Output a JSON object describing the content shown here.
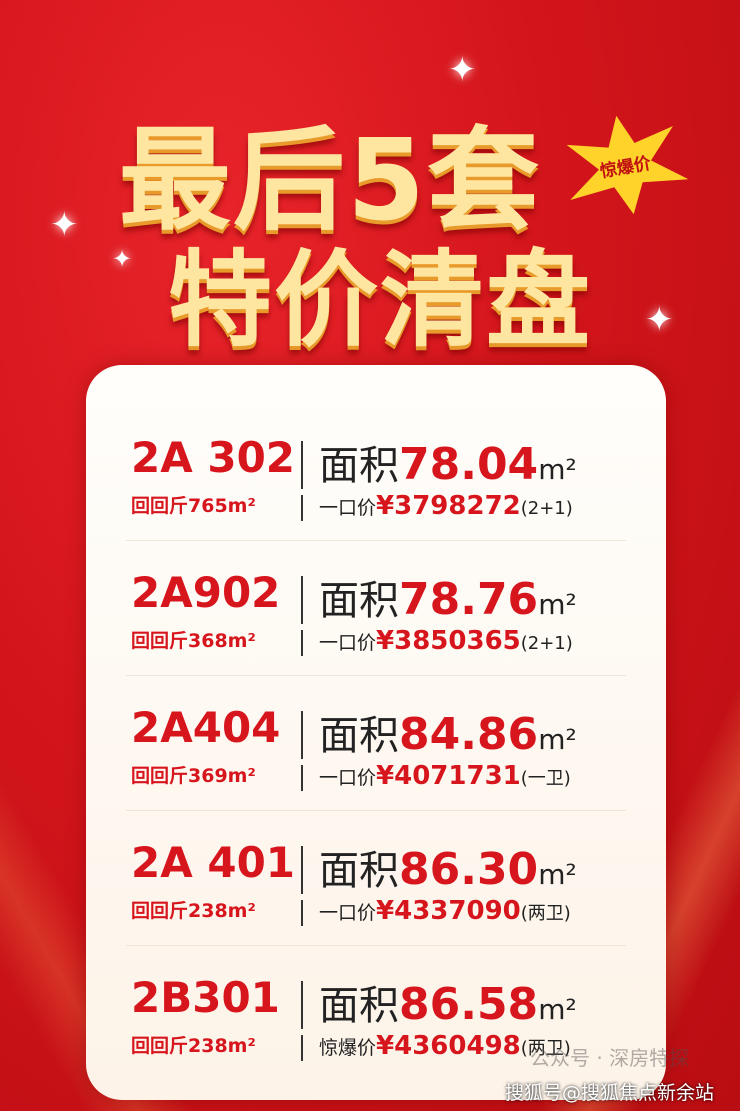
{
  "headline": {
    "line1": "最后5套",
    "line2": "特价清盘",
    "badge": "惊爆价"
  },
  "units": [
    {
      "unit": "2A 302",
      "sub": "回回斤765m²",
      "area_label": "面积",
      "area": "78.04",
      "area_unit": "m²",
      "price_label": "一口价",
      "currency": "¥",
      "price": "3798272",
      "note": "(2+1)"
    },
    {
      "unit": "2A902",
      "sub": "回回斤368m²",
      "area_label": "面积",
      "area": "78.76",
      "area_unit": "m²",
      "price_label": "一口价",
      "currency": "¥",
      "price": "3850365",
      "note": "(2+1)"
    },
    {
      "unit": "2A404",
      "sub": "回回斤369m²",
      "area_label": "面积",
      "area": "84.86",
      "area_unit": "m²",
      "price_label": "一口价",
      "currency": "¥",
      "price": "4071731",
      "note": "(一卫)"
    },
    {
      "unit": "2A 401",
      "sub": "回回斤238m²",
      "area_label": "面积",
      "area": "86.30",
      "area_unit": "m²",
      "price_label": "一口价",
      "currency": "¥",
      "price": "4337090",
      "note": "(两卫)"
    },
    {
      "unit": "2B301",
      "sub": "回回斤238m²",
      "area_label": "面积",
      "area": "86.58",
      "area_unit": "m²",
      "price_label": "惊爆价",
      "currency": "¥",
      "price": "4360498",
      "note": "(两卫)"
    }
  ],
  "watermark": {
    "wechat": "公众号 · 深房特探",
    "sohu": "搜狐号@搜狐焦点新余站"
  },
  "colors": {
    "accent": "#d7151d",
    "background": "#d3151b",
    "title": "#ffe6a0"
  }
}
